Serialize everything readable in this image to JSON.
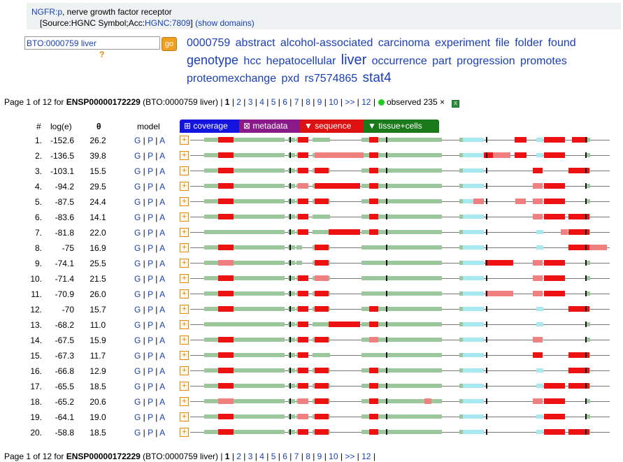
{
  "header": {
    "gene_link": "NGFR:p",
    "gene_desc": ", nerve growth factor receptor",
    "source_prefix": "[Source:HGNC Symbol;Acc:",
    "hgnc_link": "HGNC:7809",
    "source_suffix": "]",
    "show_domains": "(show domains)"
  },
  "search": {
    "value": "BTO:0000759 liver",
    "go_label": "go",
    "help": "?"
  },
  "tags": [
    {
      "text": "0000759",
      "size": 16
    },
    {
      "text": "abstract",
      "size": 16
    },
    {
      "text": "alcohol-associated",
      "size": 16
    },
    {
      "text": "carcinoma",
      "size": 16
    },
    {
      "text": "experiment",
      "size": 16
    },
    {
      "text": "file",
      "size": 16
    },
    {
      "text": "folder",
      "size": 16
    },
    {
      "text": "found",
      "size": 16
    },
    {
      "text": "genotype",
      "size": 18
    },
    {
      "text": "hcc",
      "size": 16
    },
    {
      "text": "hepatocellular",
      "size": 16
    },
    {
      "text": "liver",
      "size": 20
    },
    {
      "text": "occurrence",
      "size": 16
    },
    {
      "text": "part",
      "size": 16
    },
    {
      "text": "progression",
      "size": 16
    },
    {
      "text": "promotes",
      "size": 16
    },
    {
      "text": "proteomexchange",
      "size": 16
    },
    {
      "text": "pxd",
      "size": 16
    },
    {
      "text": "rs7574865",
      "size": 16
    },
    {
      "text": "stat4",
      "size": 19
    }
  ],
  "pager": {
    "prefix": "Page 1 of 12 for ",
    "ensp": "ENSP00000172229",
    "context": " (BTO:0000759 liver) |",
    "pages": [
      "1",
      "2",
      "3",
      "4",
      "5",
      "6",
      "7",
      "8",
      "9",
      "10",
      ">>",
      "12"
    ],
    "observed": "observed 235 ×"
  },
  "columns": {
    "num": "#",
    "log": "log(e)",
    "theta": "θ",
    "model": "model"
  },
  "tabs": {
    "coverage": "⊞ coverage",
    "metadata": "⊠ metadata",
    "sequence": "▼ sequence",
    "tissue": "▼ tissue+cells"
  },
  "colors": {
    "green": "#9cc79c",
    "red": "#ee1111",
    "pink": "#f08080",
    "cyan": "#a8e8f0",
    "tick": "#111111"
  },
  "rows": [
    {
      "n": "1.",
      "log": "-152.6",
      "theta": "26.2",
      "model": "G | P | A"
    },
    {
      "n": "2.",
      "log": "-136.5",
      "theta": "39.8",
      "model": "G | P | A"
    },
    {
      "n": "3.",
      "log": "-103.1",
      "theta": "15.5",
      "model": "G | P | A"
    },
    {
      "n": "4.",
      "log": "-94.2",
      "theta": "29.5",
      "model": "G | P | A"
    },
    {
      "n": "5.",
      "log": "-87.5",
      "theta": "24.4",
      "model": "G | P | A"
    },
    {
      "n": "6.",
      "log": "-83.6",
      "theta": "14.1",
      "model": "G | P | A"
    },
    {
      "n": "7.",
      "log": "-81.8",
      "theta": "22.0",
      "model": "G | P | A"
    },
    {
      "n": "8.",
      "log": "-75",
      "theta": "16.9",
      "model": "G | P | A"
    },
    {
      "n": "9.",
      "log": "-74.1",
      "theta": "25.5",
      "model": "G | P | A"
    },
    {
      "n": "10.",
      "log": "-71.4",
      "theta": "21.5",
      "model": "G | P | A"
    },
    {
      "n": "11.",
      "log": "-70.9",
      "theta": "26.0",
      "model": "G | P | A"
    },
    {
      "n": "12.",
      "log": "-70",
      "theta": "15.7",
      "model": "G | P | A"
    },
    {
      "n": "13.",
      "log": "-68.2",
      "theta": "11.0",
      "model": "G | P | A"
    },
    {
      "n": "14.",
      "log": "-67.5",
      "theta": "15.9",
      "model": "G | P | A"
    },
    {
      "n": "15.",
      "log": "-67.3",
      "theta": "11.7",
      "model": "G | P | A"
    },
    {
      "n": "16.",
      "log": "-66.8",
      "theta": "12.9",
      "model": "G | P | A"
    },
    {
      "n": "17.",
      "log": "-65.5",
      "theta": "18.5",
      "model": "G | P | A"
    },
    {
      "n": "18.",
      "log": "-65.2",
      "theta": "20.6",
      "model": "G | P | A"
    },
    {
      "n": "19.",
      "log": "-64.1",
      "theta": "19.0",
      "model": "G | P | A"
    },
    {
      "n": "20.",
      "log": "-58.8",
      "theta": "18.5",
      "model": "G | P | A"
    }
  ]
}
